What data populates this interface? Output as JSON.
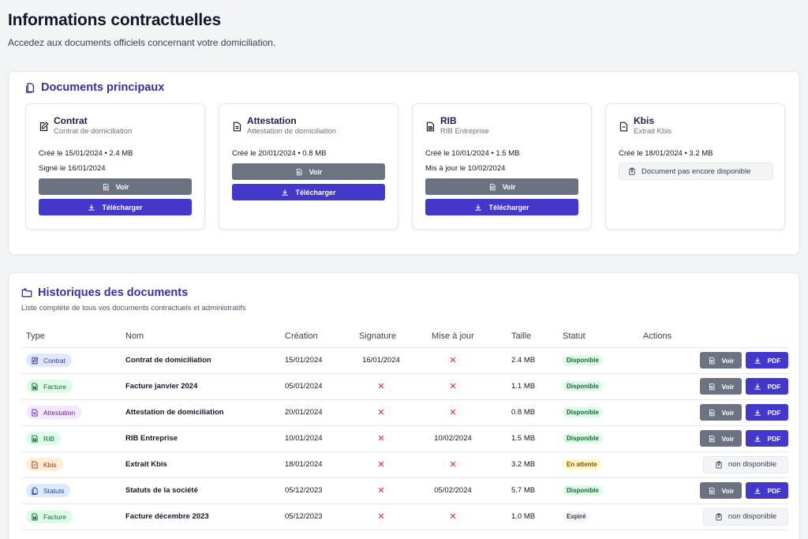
{
  "header": {
    "title": "Informations contractuelles",
    "subtitle": "Accedez aux documents officiels concernant votre domiciliation."
  },
  "main_docs": {
    "title": "Documents principaux",
    "cards": [
      {
        "title": "Contrat",
        "subtitle": "Contrat de domiciliation",
        "meta": "Créé le 15/01/2024 • 2.4 MB",
        "meta2": "Signé le 16/01/2024",
        "voir": "Voir",
        "download": "Télécharger"
      },
      {
        "title": "Attestation",
        "subtitle": "Attestation de domiciliation",
        "meta": "Créé le 20/01/2024 • 0.8 MB",
        "voir": "Voir",
        "download": "Télécharger"
      },
      {
        "title": "RIB",
        "subtitle": "RIB Entreprise",
        "meta": "Créé le 10/01/2024 • 1.5 MB",
        "meta2": "Mis à jour le 10/02/2024",
        "voir": "Voir",
        "download": "Télécharger"
      },
      {
        "title": "Kbis",
        "subtitle": "Extrait Kbis",
        "meta": "Créé le 18/01/2024 • 3.2 MB",
        "unavailable": "Document pas encore disponible"
      }
    ]
  },
  "history": {
    "title": "Historiques des documents",
    "subtitle": "Liste complète de tous vos documents contractuels et administratifs",
    "columns": [
      "Type",
      "Nom",
      "Création",
      "Signature",
      "Mise à jour",
      "Taille",
      "Statut",
      "Actions"
    ],
    "none_mark": "✕",
    "voir_label": "Voir",
    "pdf_label": "PDF",
    "na_label": "non disponible",
    "rows": [
      {
        "type": "Contrat",
        "name": "Contrat de domiciliation",
        "created": "15/01/2024",
        "signature": "16/01/2024",
        "updated": "",
        "size": "2.4 MB",
        "status": "Disponible"
      },
      {
        "type": "Facture",
        "name": "Facture janvier 2024",
        "created": "05/01/2024",
        "signature": "",
        "updated": "",
        "size": "1.1 MB",
        "status": "Disponible"
      },
      {
        "type": "Attestation",
        "name": "Attestation de domiciliation",
        "created": "20/01/2024",
        "signature": "",
        "updated": "",
        "size": "0.8 MB",
        "status": "Disponible"
      },
      {
        "type": "RIB",
        "name": "RIB Entreprise",
        "created": "10/01/2024",
        "signature": "",
        "updated": "10/02/2024",
        "size": "1.5 MB",
        "status": "Disponible"
      },
      {
        "type": "Kbis",
        "name": "Extrait Kbis",
        "created": "18/01/2024",
        "signature": "",
        "updated": "",
        "size": "3.2 MB",
        "status": "En attente"
      },
      {
        "type": "Statuts",
        "name": "Statuts de la société",
        "created": "05/12/2023",
        "signature": "",
        "updated": "05/02/2024",
        "size": "5.7 MB",
        "status": "Disponible"
      },
      {
        "type": "Facture",
        "name": "Facture décembre 2023",
        "created": "05/12/2023",
        "signature": "",
        "updated": "",
        "size": "1.0 MB",
        "status": "Expiré"
      }
    ]
  },
  "colors": {
    "accent": "#4338ca",
    "button_gray": "#6b7280",
    "status_available": "#dcfce7",
    "status_pending": "#fef9c3",
    "status_expired": "#f3f4f6",
    "none_mark": "#dc2626"
  }
}
